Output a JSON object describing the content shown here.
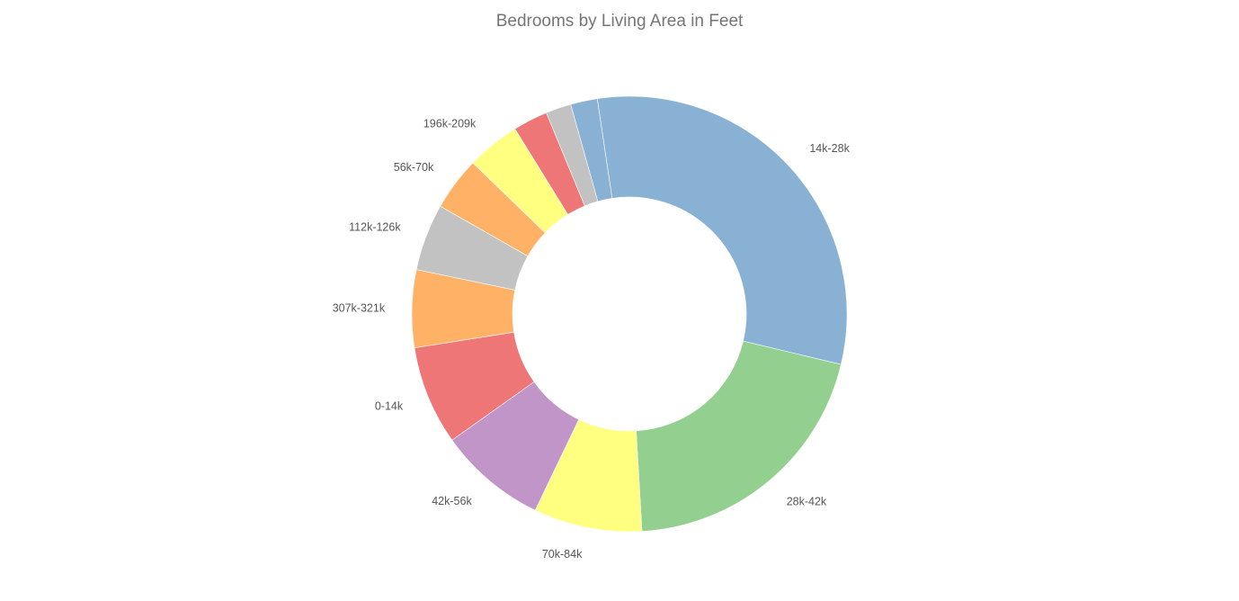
{
  "chart_data": {
    "type": "pie",
    "variant": "donut",
    "title": "Bedrooms by Living Area in Feet",
    "slices": [
      {
        "label": "14k-28k",
        "value": 31.3,
        "color": "#88b1d4",
        "show_label": true
      },
      {
        "label": "28k-42k",
        "value": 20.5,
        "color": "#93cf8f",
        "show_label": true
      },
      {
        "label": "70k-84k",
        "value": 8.1,
        "color": "#ffff80",
        "show_label": true
      },
      {
        "label": "42k-56k",
        "value": 8.1,
        "color": "#c295c8",
        "show_label": true
      },
      {
        "label": "0-14k",
        "value": 7.4,
        "color": "#ef7676",
        "show_label": true
      },
      {
        "label": "307k-321k",
        "value": 5.8,
        "color": "#ffb266",
        "show_label": true
      },
      {
        "label": "112k-126k",
        "value": 5.0,
        "color": "#c2c2c2",
        "show_label": true
      },
      {
        "label": "56k-70k",
        "value": 4.0,
        "color": "#ffb266",
        "show_label": true
      },
      {
        "label": "196k-209k",
        "value": 4.0,
        "color": "#ffff80",
        "show_label": true
      },
      {
        "label": "",
        "value": 2.6,
        "color": "#ef7676",
        "show_label": false
      },
      {
        "label": "",
        "value": 1.9,
        "color": "#c2c2c2",
        "show_label": false
      },
      {
        "label": "",
        "value": 2.0,
        "color": "#88b1d4",
        "show_label": false
      }
    ]
  }
}
